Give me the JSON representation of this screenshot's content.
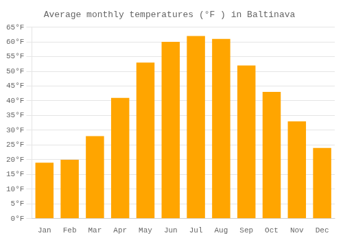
{
  "chart_data": {
    "type": "bar",
    "title": "Average monthly temperatures (°F ) in Baltinava",
    "categories": [
      "Jan",
      "Feb",
      "Mar",
      "Apr",
      "May",
      "Jun",
      "Jul",
      "Aug",
      "Sep",
      "Oct",
      "Nov",
      "Dec"
    ],
    "values": [
      19,
      20,
      28,
      41,
      53,
      60,
      62,
      61,
      52,
      43,
      33,
      24
    ],
    "color": "#FFA500",
    "ylim": [
      0,
      65
    ],
    "yticks": [
      {
        "value": 0,
        "label": "0°F"
      },
      {
        "value": 5,
        "label": "5°F"
      },
      {
        "value": 10,
        "label": "10°F"
      },
      {
        "value": 15,
        "label": "15°F"
      },
      {
        "value": 20,
        "label": "20°F"
      },
      {
        "value": 25,
        "label": "25°F"
      },
      {
        "value": 30,
        "label": "30°F"
      },
      {
        "value": 35,
        "label": "35°F"
      },
      {
        "value": 40,
        "label": "40°F"
      },
      {
        "value": 45,
        "label": "45°F"
      },
      {
        "value": 50,
        "label": "50°F"
      },
      {
        "value": 55,
        "label": "55°F"
      },
      {
        "value": 60,
        "label": "60°F"
      },
      {
        "value": 65,
        "label": "65°F"
      }
    ],
    "grid": "y"
  }
}
